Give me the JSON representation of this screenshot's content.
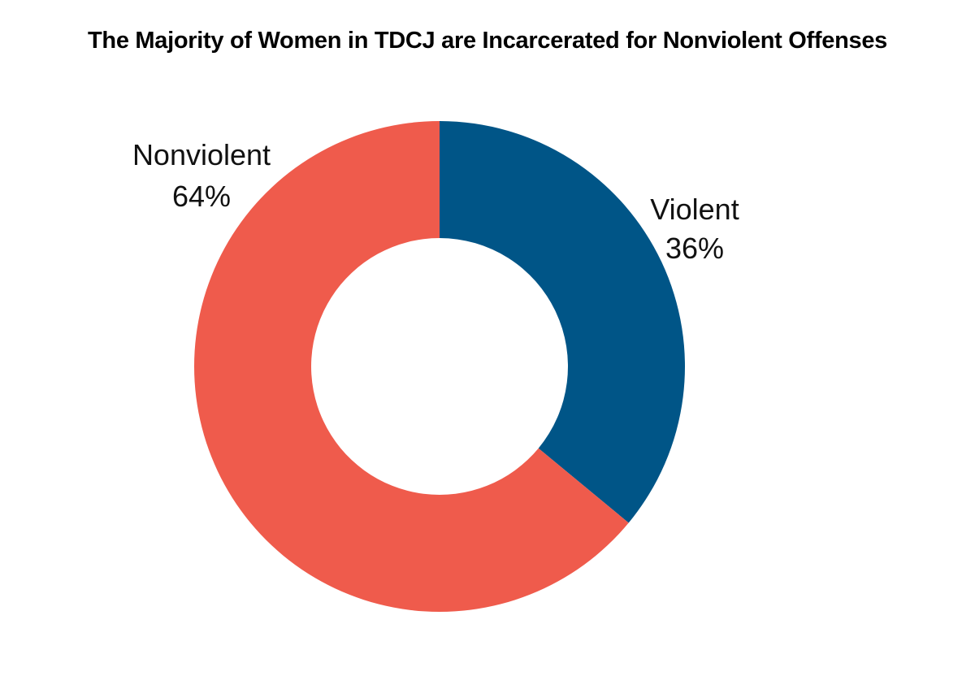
{
  "chart_data": {
    "type": "pie",
    "title": "The Majority of Women in TDCJ are Incarcerated for Nonviolent Offenses",
    "donut": true,
    "slices": [
      {
        "label": "Violent",
        "value": 36,
        "value_label": "36%",
        "color": "#005587"
      },
      {
        "label": "Nonviolent",
        "value": 64,
        "value_label": "64%",
        "color": "#ef5b4c"
      }
    ],
    "start_angle": "12 o'clock",
    "direction": "clockwise",
    "legend": "none"
  }
}
